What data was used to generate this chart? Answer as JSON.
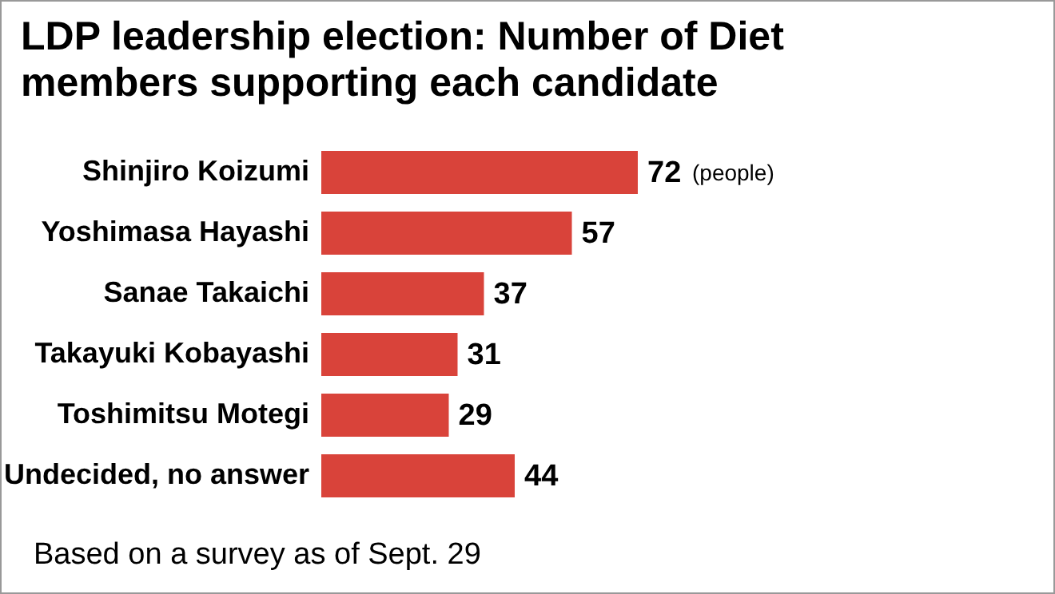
{
  "chart_data": {
    "type": "bar",
    "orientation": "horizontal",
    "title": "LDP leadership election: Number of Diet members supporting each candidate",
    "categories": [
      "Shinjiro Koizumi",
      "Yoshimasa Hayashi",
      "Sanae Takaichi",
      "Takayuki Kobayashi",
      "Toshimitsu Motegi",
      "Undecided, no answer"
    ],
    "values": [
      72,
      57,
      37,
      31,
      29,
      44
    ],
    "color": "#d9433a",
    "data_labels": true,
    "annotations": [
      {
        "text": "(people)",
        "x": 72,
        "y": "Shinjiro Koizumi"
      },
      "Based on a survey as of Sept. 29"
    ]
  }
}
